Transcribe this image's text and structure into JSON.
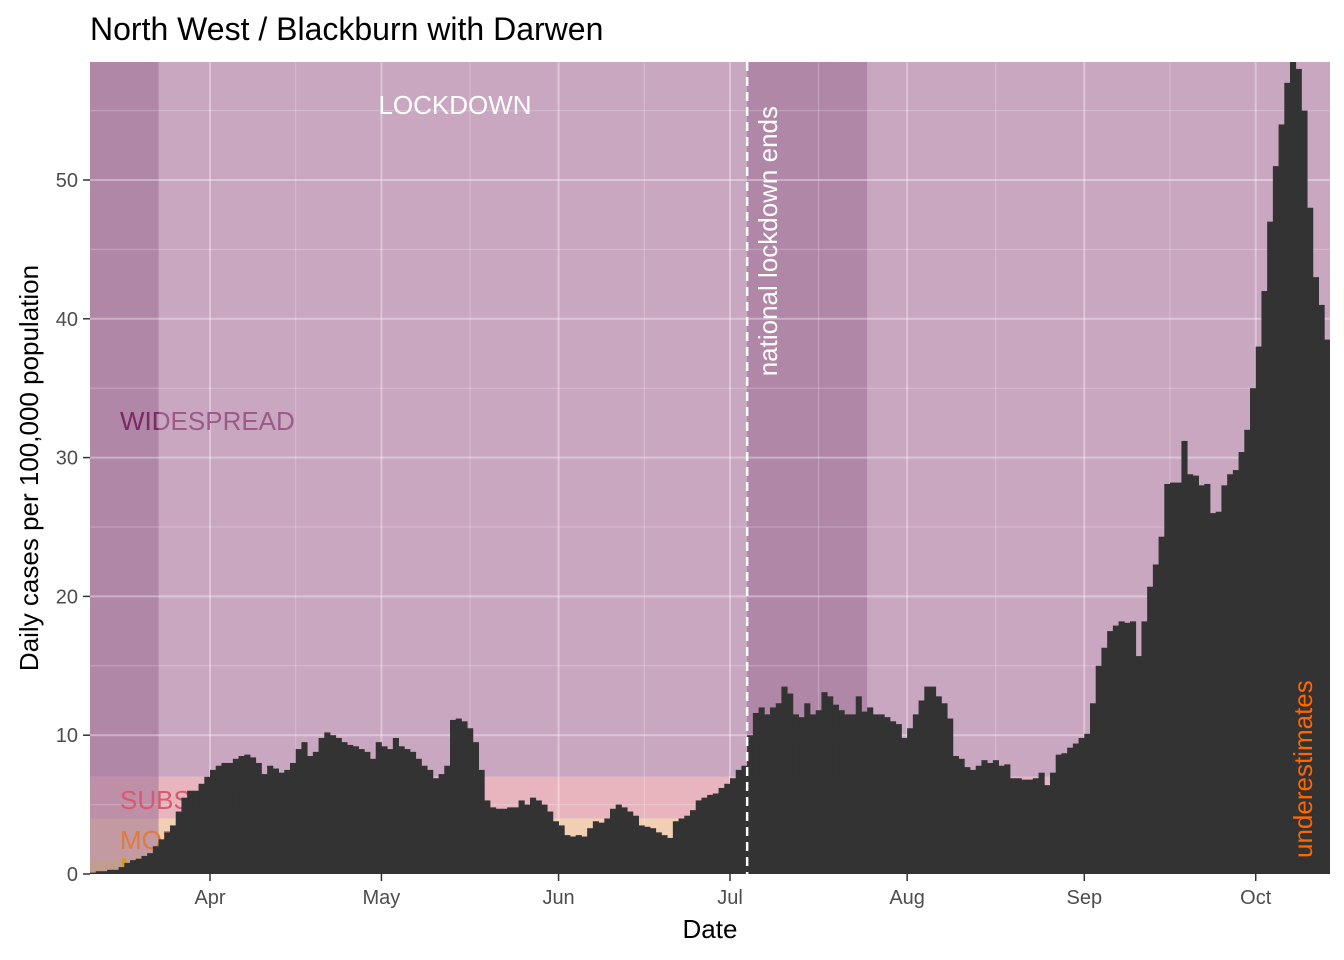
{
  "chart_data": {
    "type": "bar",
    "title": "North West / Blackburn with Darwen",
    "xlabel": "Date",
    "ylabel": "Daily cases per 100,000 population",
    "x_range": [
      "2020-03-11",
      "2020-10-14"
    ],
    "ylim": [
      0,
      58.5
    ],
    "x_ticks": [
      {
        "date": "2020-04-01",
        "label": "Apr"
      },
      {
        "date": "2020-05-01",
        "label": "May"
      },
      {
        "date": "2020-06-01",
        "label": "Jun"
      },
      {
        "date": "2020-07-01",
        "label": "Jul"
      },
      {
        "date": "2020-08-01",
        "label": "Aug"
      },
      {
        "date": "2020-09-01",
        "label": "Sep"
      },
      {
        "date": "2020-10-01",
        "label": "Oct"
      }
    ],
    "y_ticks": [
      0,
      10,
      20,
      30,
      40,
      50
    ],
    "grid": true,
    "start_date": "2020-03-11",
    "values": [
      0.1,
      0.2,
      0.2,
      0.3,
      0.3,
      0.5,
      0.8,
      1,
      1.1,
      1.3,
      1.5,
      2,
      2.5,
      3,
      3.5,
      4.5,
      5.5,
      6,
      6,
      6.5,
      7,
      7.5,
      7.8,
      8,
      8,
      8.3,
      8.5,
      8.6,
      8.4,
      8,
      7.2,
      7.8,
      7.6,
      7.3,
      7.5,
      8,
      9,
      9.5,
      8.5,
      8.8,
      9.8,
      10.2,
      10,
      9.8,
      9.5,
      9.3,
      9.2,
      9,
      8.8,
      8.3,
      9.5,
      9.2,
      9,
      9.8,
      9.2,
      9,
      8.8,
      8.3,
      7.8,
      7.5,
      6.9,
      7.2,
      7.8,
      11.1,
      11.2,
      11,
      10.5,
      9.5,
      7.5,
      5.3,
      4.8,
      4.7,
      4.7,
      4.8,
      4.8,
      5.3,
      5,
      5.5,
      5.3,
      5,
      4.5,
      3.8,
      3.5,
      2.8,
      2.7,
      2.8,
      2.7,
      3.3,
      3.8,
      3.7,
      4,
      4.7,
      5,
      4.8,
      4.5,
      4.2,
      3.5,
      3.4,
      3.3,
      3,
      2.8,
      2.6,
      3.8,
      4,
      4.2,
      4.6,
      5.3,
      5.5,
      5.7,
      5.8,
      6.2,
      6.5,
      6.9,
      7.5,
      7.8,
      10,
      11.6,
      12,
      11.5,
      12,
      12.3,
      13.5,
      13,
      11.5,
      11.3,
      12.3,
      11.5,
      11.8,
      13.1,
      12.8,
      12.2,
      11.8,
      11.5,
      11.5,
      12.8,
      11.7,
      12,
      11.5,
      11.5,
      11.3,
      11,
      10.8,
      9.8,
      10.5,
      11.5,
      12.5,
      13.5,
      13.5,
      12.8,
      12.3,
      11.2,
      8.5,
      8.3,
      7.7,
      7.5,
      7.8,
      8.2,
      8,
      8.2,
      7.8,
      7.9,
      6.9,
      6.9,
      6.8,
      6.8,
      6.9,
      7.3,
      6.4,
      7.3,
      8.6,
      8.7,
      9.1,
      9.4,
      9.8,
      10.1,
      12.3,
      15,
      16.3,
      17.5,
      17.9,
      18.2,
      18.1,
      18.2,
      15.7,
      18.2,
      20.7,
      22.3,
      24.3,
      28.1,
      28.2,
      28.2,
      31.2,
      28.8,
      28.7,
      28,
      28.1,
      26,
      26.1,
      28,
      28.8,
      29.1,
      30.4,
      32,
      35,
      38,
      42,
      47,
      51,
      54,
      57,
      59,
      58,
      55,
      48,
      43,
      41,
      38.5
    ]
  },
  "annotations": {
    "lockdown_label": "LOCKDOWN",
    "lockdown_end_label": "national lockdown ends",
    "lockdown_end_date": "2020-07-04",
    "underestimates_label": "underestimates",
    "dark_bands": [
      [
        "2020-03-11",
        "2020-03-23"
      ],
      [
        "2020-07-04",
        "2020-07-25"
      ]
    ]
  },
  "bands": [
    {
      "label": "WIDESPREAD",
      "from": 7,
      "to": 58.5,
      "color": "#c9a7c1"
    },
    {
      "label": "SUBSTANTIAL",
      "from": 4,
      "to": 7,
      "color": "#e8b5bf"
    },
    {
      "label": "MODERATE",
      "from": 1,
      "to": 4,
      "color": "#f1cfb3"
    },
    {
      "label": "MINOR",
      "from": 0,
      "to": 1,
      "color": "#edd68e"
    }
  ],
  "colors": {
    "bars": "#333333",
    "dark_band": "#9c6e94",
    "widespread_text": "#9c5a8a",
    "widespread_text_dark": "#7a2a66",
    "substantial_text": "#d65a70",
    "moderate_text": "#e07a40",
    "minor_text": "#d49a20",
    "underestimates_text": "#ff6600",
    "lockdown_text": "#ffffff",
    "grid": "#ffffff",
    "axis_text": "#4d4d4d"
  }
}
